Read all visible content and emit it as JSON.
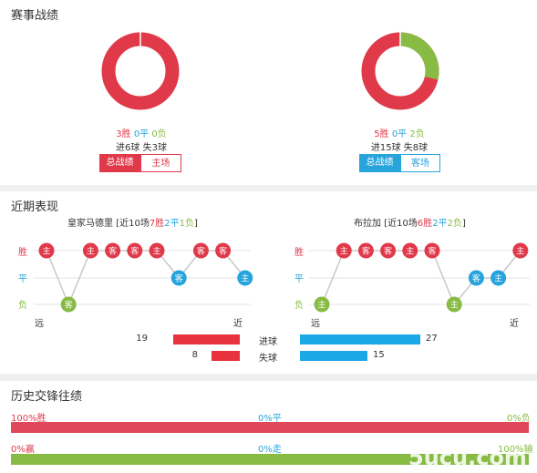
{
  "season": {
    "title": "赛事战绩",
    "left": {
      "win": "3胜",
      "draw": "0平",
      "lose": "0负",
      "goals": "进6球  失3球",
      "tab_total": "总战绩",
      "tab_venue": "主场",
      "chart_data": {
        "type": "pie",
        "values": [
          3,
          0,
          0
        ],
        "labels": [
          "胜",
          "平",
          "负"
        ]
      }
    },
    "right": {
      "win": "5胜",
      "draw": "0平",
      "lose": "2负",
      "goals": "进15球  失8球",
      "tab_total": "总战绩",
      "tab_venue": "客场",
      "chart_data": {
        "type": "pie",
        "values": [
          5,
          0,
          2
        ],
        "labels": [
          "胜",
          "平",
          "负"
        ]
      }
    }
  },
  "recent": {
    "title": "近期表现",
    "left_team": {
      "name": "皇家马德里",
      "summary_pre": "[近10场",
      "w": "7胜",
      "d": "2平",
      "l": "1负",
      "summary_post": "]",
      "results": [
        {
          "r": "W",
          "t": "主"
        },
        {
          "r": "L",
          "t": "客"
        },
        {
          "r": "W",
          "t": "主"
        },
        {
          "r": "W",
          "t": "客"
        },
        {
          "r": "W",
          "t": "客"
        },
        {
          "r": "W",
          "t": "主"
        },
        {
          "r": "D",
          "t": "客"
        },
        {
          "r": "W",
          "t": "客"
        },
        {
          "r": "W",
          "t": "客"
        },
        {
          "r": "D",
          "t": "主"
        }
      ]
    },
    "right_team": {
      "name": "布拉加",
      "summary_pre": "[近10场",
      "w": "6胜",
      "d": "2平",
      "l": "2负",
      "summary_post": "]",
      "results": [
        {
          "r": "L",
          "t": "主"
        },
        {
          "r": "W",
          "t": "主"
        },
        {
          "r": "W",
          "t": "客"
        },
        {
          "r": "W",
          "t": "客"
        },
        {
          "r": "W",
          "t": "主"
        },
        {
          "r": "W",
          "t": "客"
        },
        {
          "r": "L",
          "t": "主"
        },
        {
          "r": "D",
          "t": "客"
        },
        {
          "r": "D",
          "t": "主"
        },
        {
          "r": "W",
          "t": "主"
        }
      ]
    },
    "axis_win": "胜",
    "axis_draw": "平",
    "axis_lose": "负",
    "far": "远",
    "near": "近",
    "goals": {
      "label_for": "进球",
      "label_against": "失球",
      "left_for": 19,
      "left_against": 8,
      "right_for": 27,
      "right_against": 15
    }
  },
  "h2h": {
    "title": "历史交锋往绩",
    "row1": {
      "left": "100%胜",
      "mid": "0%平",
      "right": "0%负"
    },
    "row2": {
      "left": "0%赢",
      "mid": "0%走",
      "right": "100%输"
    },
    "watermark": "5ucu.com"
  },
  "colors": {
    "red": "#e03a4a",
    "green": "#88bb44",
    "blue": "#27a4dc",
    "grey": "#dcdcdc"
  }
}
